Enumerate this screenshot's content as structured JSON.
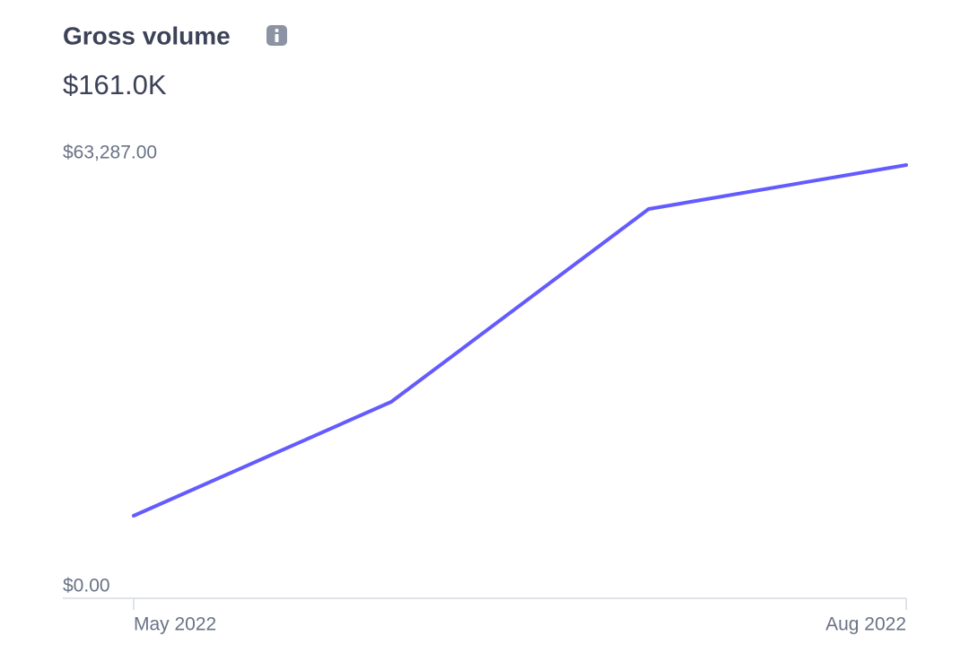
{
  "chart_data": {
    "type": "line",
    "title": "Gross volume",
    "subtitle": "$161.0K",
    "categories": [
      "May 2022",
      null,
      null,
      "Aug 2022"
    ],
    "series": [
      {
        "name": "Gross volume",
        "color": "#635bff",
        "values": [
          12055,
          28695,
          56867,
          63287
        ]
      }
    ],
    "ylim": [
      0,
      63287
    ],
    "yticks": [
      {
        "value": 0,
        "label": "$0.00"
      },
      {
        "value": 63287,
        "label": "$63,287.00"
      }
    ],
    "grid": false
  }
}
